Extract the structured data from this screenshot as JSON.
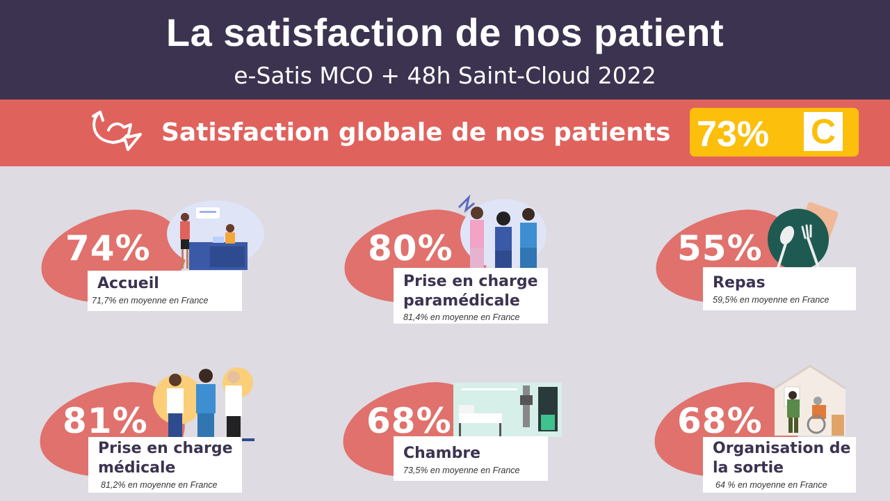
{
  "header": {
    "title": "La satisfaction de nos patient",
    "subtitle": "e-Satis MCO + 48h Saint-Cloud 2022"
  },
  "banner": {
    "icon": "swirl-arrow-icon",
    "text": "Satisfaction globale de nos patients",
    "score": "73%",
    "grade": "C",
    "colors": {
      "banner": "#e0625d",
      "score_box": "#fbbf0c",
      "header": "#3c3350"
    }
  },
  "indicators": [
    {
      "value": "74%",
      "label": "Accueil",
      "note": "71,7% en moyenne en France",
      "illustration": "reception-desk-illustration"
    },
    {
      "value": "80%",
      "label": "Prise en charge paramédicale",
      "note": "81,4% en moyenne en France",
      "illustration": "nurses-illustration"
    },
    {
      "value": "55%",
      "label": "Repas",
      "note": "59,5% en moyenne en France",
      "illustration": "plate-cutlery-illustration"
    },
    {
      "value": "81%",
      "label": "Prise en charge médicale",
      "note": "81,2% en moyenne en France",
      "illustration": "doctors-illustration"
    },
    {
      "value": "68%",
      "label": "Chambre",
      "note": "73,5% en moyenne en France",
      "illustration": "hospital-room-illustration"
    },
    {
      "value": "68%",
      "label": "Organisation de la sortie",
      "note": "64 % en moyenne en France",
      "illustration": "home-discharge-illustration"
    }
  ]
}
